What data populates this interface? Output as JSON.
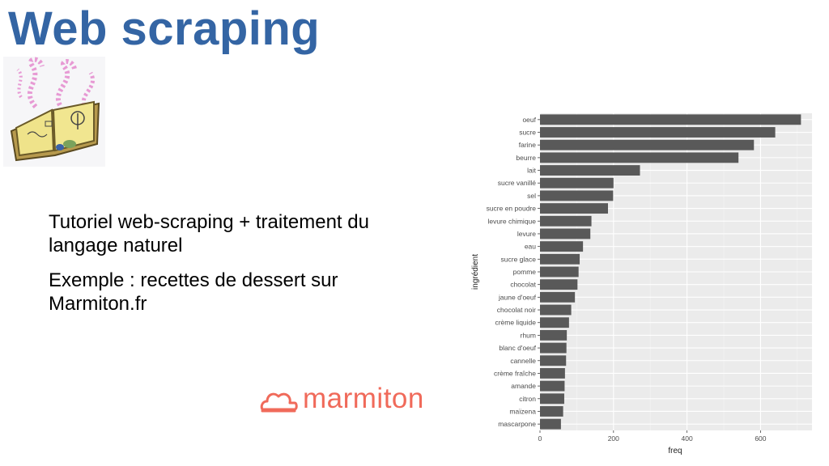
{
  "slide": {
    "title": "Web scraping",
    "bullets": [
      "Tutoriel web-scraping + traitement du langage naturel",
      "Exemple : recettes de dessert sur Marmiton.fr"
    ],
    "logo_text": "marmiton"
  },
  "colors": {
    "title": "#3465a4",
    "bar": "#595959",
    "panel": "#ebebeb",
    "logo": "#f06a5a"
  },
  "chart_data": {
    "type": "bar",
    "orientation": "horizontal",
    "xlabel": "freq",
    "ylabel": "ingrédient",
    "xlim": [
      0,
      740
    ],
    "xticks": [
      0,
      200,
      400,
      600
    ],
    "grid": true,
    "categories": [
      "oeuf",
      "sucre",
      "farine",
      "beurre",
      "lait",
      "sucre vanillé",
      "sel",
      "sucre en poudre",
      "levure chimique",
      "levure",
      "eau",
      "sucre glace",
      "pomme",
      "chocolat",
      "jaune d'oeuf",
      "chocolat noir",
      "crème liquide",
      "rhum",
      "blanc d'oeuf",
      "cannelle",
      "crème fraîche",
      "amande",
      "citron",
      "maïzena",
      "mascarpone"
    ],
    "values": [
      710,
      640,
      582,
      540,
      272,
      200,
      199,
      185,
      140,
      137,
      117,
      108,
      105,
      102,
      95,
      85,
      79,
      73,
      72,
      71,
      68,
      67,
      66,
      63,
      57
    ]
  }
}
